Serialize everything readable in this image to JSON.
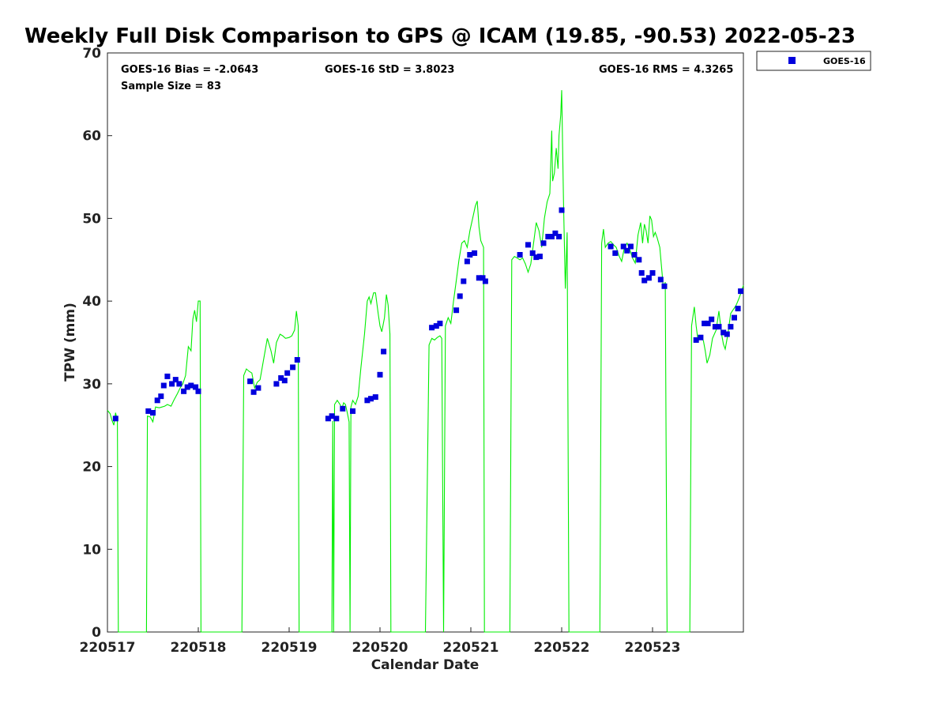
{
  "chart_data": {
    "type": "scatter",
    "title": "Weekly Full Disk Comparison to GPS @ ICAM (19.85, -90.53) 2022-05-23",
    "xlabel": "Calendar Date",
    "ylabel": "TPW (mm)",
    "xlim": [
      220517,
      220524
    ],
    "ylim": [
      0,
      70
    ],
    "x_ticks": [
      220517,
      220518,
      220519,
      220520,
      220521,
      220522,
      220523
    ],
    "x_tick_labels": [
      "220517",
      "220518",
      "220519",
      "220520",
      "220521",
      "220522",
      "220523"
    ],
    "y_ticks": [
      0,
      10,
      20,
      30,
      40,
      50,
      60,
      70
    ],
    "y_tick_labels": [
      "0",
      "10",
      "20",
      "30",
      "40",
      "50",
      "60",
      "70"
    ],
    "grid": false,
    "legend_position": "top-right",
    "stats": {
      "bias": "GOES-16 Bias = -2.0643",
      "std": "GOES-16 StD = 3.8023",
      "rms": "GOES-16 RMS = 4.3265",
      "sample_size": "Sample Size = 83"
    },
    "series": [
      {
        "name": "GOES-16",
        "kind": "markers",
        "color": "#0000dd",
        "marker": "square",
        "points": [
          [
            220517.09,
            25.8
          ],
          [
            220517.45,
            26.7
          ],
          [
            220517.5,
            26.5
          ],
          [
            220517.55,
            28.0
          ],
          [
            220517.59,
            28.5
          ],
          [
            220517.62,
            29.8
          ],
          [
            220517.66,
            30.9
          ],
          [
            220517.71,
            30.0
          ],
          [
            220517.75,
            30.5
          ],
          [
            220517.79,
            30.0
          ],
          [
            220517.84,
            29.1
          ],
          [
            220517.88,
            29.6
          ],
          [
            220517.92,
            29.8
          ],
          [
            220517.97,
            29.6
          ],
          [
            220518.0,
            29.1
          ],
          [
            220518.57,
            30.3
          ],
          [
            220518.61,
            29.0
          ],
          [
            220518.66,
            29.5
          ],
          [
            220518.86,
            30.0
          ],
          [
            220518.91,
            30.7
          ],
          [
            220518.95,
            30.4
          ],
          [
            220518.98,
            31.3
          ],
          [
            220519.04,
            32.0
          ],
          [
            220519.09,
            32.9
          ],
          [
            220519.43,
            25.8
          ],
          [
            220519.47,
            26.1
          ],
          [
            220519.52,
            25.8
          ],
          [
            220519.59,
            27.0
          ],
          [
            220519.7,
            26.7
          ],
          [
            220519.86,
            28.0
          ],
          [
            220519.9,
            28.2
          ],
          [
            220519.95,
            28.4
          ],
          [
            220520.0,
            31.1
          ],
          [
            220520.04,
            33.9
          ],
          [
            220520.57,
            36.8
          ],
          [
            220520.62,
            37.0
          ],
          [
            220520.66,
            37.3
          ],
          [
            220520.84,
            38.9
          ],
          [
            220520.88,
            40.6
          ],
          [
            220520.92,
            42.4
          ],
          [
            220520.96,
            44.8
          ],
          [
            220520.99,
            45.6
          ],
          [
            220521.04,
            45.8
          ],
          [
            220521.09,
            42.8
          ],
          [
            220521.13,
            42.8
          ],
          [
            220521.16,
            42.4
          ],
          [
            220521.54,
            45.6
          ],
          [
            220521.63,
            46.8
          ],
          [
            220521.68,
            45.8
          ],
          [
            220521.72,
            45.3
          ],
          [
            220521.76,
            45.4
          ],
          [
            220521.8,
            47.0
          ],
          [
            220521.85,
            47.8
          ],
          [
            220521.89,
            47.8
          ],
          [
            220521.93,
            48.2
          ],
          [
            220521.97,
            47.8
          ],
          [
            220522.0,
            51.0
          ],
          [
            220522.54,
            46.6
          ],
          [
            220522.59,
            45.8
          ],
          [
            220522.68,
            46.6
          ],
          [
            220522.72,
            46.1
          ],
          [
            220522.76,
            46.6
          ],
          [
            220522.8,
            45.6
          ],
          [
            220522.85,
            45.0
          ],
          [
            220522.88,
            43.4
          ],
          [
            220522.91,
            42.5
          ],
          [
            220522.96,
            42.8
          ],
          [
            220523.0,
            43.4
          ],
          [
            220523.09,
            42.6
          ],
          [
            220523.13,
            41.8
          ],
          [
            220523.48,
            35.3
          ],
          [
            220523.53,
            35.6
          ],
          [
            220523.57,
            37.3
          ],
          [
            220523.61,
            37.3
          ],
          [
            220523.65,
            37.8
          ],
          [
            220523.69,
            36.9
          ],
          [
            220523.73,
            36.9
          ],
          [
            220523.78,
            36.2
          ],
          [
            220523.82,
            36.0
          ],
          [
            220523.86,
            36.9
          ],
          [
            220523.9,
            38.0
          ],
          [
            220523.94,
            39.1
          ],
          [
            220523.97,
            41.2
          ]
        ]
      },
      {
        "name": "",
        "kind": "line",
        "color": "#00ee00",
        "points": [
          [
            220517.0,
            26.8
          ],
          [
            220517.03,
            26.4
          ],
          [
            220517.05,
            25.6
          ],
          [
            220517.07,
            25.0
          ],
          [
            220517.09,
            26.5
          ],
          [
            220517.11,
            25.5
          ],
          [
            220517.12,
            0
          ],
          [
            220517.43,
            0
          ],
          [
            220517.44,
            26.1
          ],
          [
            220517.47,
            26.0
          ],
          [
            220517.5,
            25.4
          ],
          [
            220517.53,
            27.2
          ],
          [
            220517.57,
            27.1
          ],
          [
            220517.6,
            27.2
          ],
          [
            220517.63,
            27.3
          ],
          [
            220517.66,
            27.5
          ],
          [
            220517.7,
            27.3
          ],
          [
            220517.73,
            28.0
          ],
          [
            220517.77,
            28.8
          ],
          [
            220517.8,
            29.5
          ],
          [
            220517.83,
            30.0
          ],
          [
            220517.86,
            31.0
          ],
          [
            220517.89,
            34.5
          ],
          [
            220517.92,
            34.0
          ],
          [
            220517.94,
            37.8
          ],
          [
            220517.96,
            38.9
          ],
          [
            220517.98,
            37.5
          ],
          [
            220518.0,
            40.0
          ],
          [
            220518.02,
            40.0
          ],
          [
            220518.03,
            0
          ],
          [
            220518.48,
            0
          ],
          [
            220518.5,
            31.0
          ],
          [
            220518.53,
            31.8
          ],
          [
            220518.56,
            31.5
          ],
          [
            220518.59,
            31.3
          ],
          [
            220518.62,
            29.5
          ],
          [
            220518.65,
            30.2
          ],
          [
            220518.68,
            30.5
          ],
          [
            220518.72,
            33.0
          ],
          [
            220518.76,
            35.5
          ],
          [
            220518.8,
            34.0
          ],
          [
            220518.83,
            32.5
          ],
          [
            220518.86,
            35.0
          ],
          [
            220518.9,
            36.0
          ],
          [
            220518.93,
            35.8
          ],
          [
            220518.96,
            35.5
          ],
          [
            220519.0,
            35.6
          ],
          [
            220519.03,
            35.8
          ],
          [
            220519.06,
            36.5
          ],
          [
            220519.08,
            38.8
          ],
          [
            220519.1,
            37.0
          ],
          [
            220519.11,
            0
          ],
          [
            220519.47,
            0
          ],
          [
            220519.48,
            25.5
          ],
          [
            220519.49,
            0
          ],
          [
            220519.5,
            27.5
          ],
          [
            220519.53,
            28.0
          ],
          [
            220519.56,
            27.5
          ],
          [
            220519.58,
            27.0
          ],
          [
            220519.6,
            27.7
          ],
          [
            220519.62,
            27.5
          ],
          [
            220519.64,
            26.5
          ],
          [
            220519.66,
            25.4
          ],
          [
            220519.67,
            0
          ],
          [
            220519.68,
            27.2
          ],
          [
            220519.7,
            28.0
          ],
          [
            220519.73,
            27.5
          ],
          [
            220519.76,
            28.5
          ],
          [
            220519.79,
            32.0
          ],
          [
            220519.83,
            36.0
          ],
          [
            220519.86,
            40.0
          ],
          [
            220519.88,
            40.5
          ],
          [
            220519.9,
            39.7
          ],
          [
            220519.93,
            41.0
          ],
          [
            220519.95,
            41.0
          ],
          [
            220519.98,
            38.5
          ],
          [
            220520.0,
            37.0
          ],
          [
            220520.02,
            36.3
          ],
          [
            220520.05,
            38.0
          ],
          [
            220520.07,
            40.8
          ],
          [
            220520.09,
            39.5
          ],
          [
            220520.11,
            36.0
          ],
          [
            220520.12,
            0
          ],
          [
            220520.5,
            0
          ],
          [
            220520.54,
            34.7
          ],
          [
            220520.57,
            35.5
          ],
          [
            220520.6,
            35.3
          ],
          [
            220520.63,
            35.6
          ],
          [
            220520.66,
            35.8
          ],
          [
            220520.68,
            35.5
          ],
          [
            220520.7,
            0
          ],
          [
            220520.72,
            37.0
          ],
          [
            220520.75,
            38.0
          ],
          [
            220520.78,
            37.3
          ],
          [
            220520.81,
            40.0
          ],
          [
            220520.84,
            42.5
          ],
          [
            220520.87,
            45.0
          ],
          [
            220520.9,
            47.0
          ],
          [
            220520.93,
            47.3
          ],
          [
            220520.96,
            46.5
          ],
          [
            220520.99,
            48.5
          ],
          [
            220521.02,
            50.0
          ],
          [
            220521.05,
            51.5
          ],
          [
            220521.07,
            52.1
          ],
          [
            220521.09,
            49.0
          ],
          [
            220521.11,
            47.3
          ],
          [
            220521.14,
            46.5
          ],
          [
            220521.15,
            0
          ],
          [
            220521.43,
            0
          ],
          [
            220521.45,
            45.0
          ],
          [
            220521.48,
            45.4
          ],
          [
            220521.51,
            45.2
          ],
          [
            220521.54,
            45.0
          ],
          [
            220521.57,
            45.2
          ],
          [
            220521.6,
            44.5
          ],
          [
            220521.63,
            43.5
          ],
          [
            220521.66,
            44.5
          ],
          [
            220521.69,
            47.0
          ],
          [
            220521.72,
            49.5
          ],
          [
            220521.75,
            48.5
          ],
          [
            220521.78,
            46.5
          ],
          [
            220521.81,
            50.0
          ],
          [
            220521.84,
            52.0
          ],
          [
            220521.87,
            53.0
          ],
          [
            220521.89,
            60.6
          ],
          [
            220521.9,
            54.5
          ],
          [
            220521.92,
            55.5
          ],
          [
            220521.94,
            58.5
          ],
          [
            220521.96,
            56.0
          ],
          [
            220521.97,
            60.0
          ],
          [
            220521.99,
            62.5
          ],
          [
            220522.0,
            65.5
          ],
          [
            220522.02,
            52.0
          ],
          [
            220522.04,
            41.5
          ],
          [
            220522.06,
            48.3
          ],
          [
            220522.08,
            0
          ],
          [
            220522.42,
            0
          ],
          [
            220522.44,
            47.0
          ],
          [
            220522.46,
            48.7
          ],
          [
            220522.48,
            46.5
          ],
          [
            220522.51,
            47.0
          ],
          [
            220522.54,
            47.2
          ],
          [
            220522.57,
            46.8
          ],
          [
            220522.6,
            46.5
          ],
          [
            220522.63,
            45.5
          ],
          [
            220522.66,
            44.8
          ],
          [
            220522.69,
            46.5
          ],
          [
            220522.72,
            47.0
          ],
          [
            220522.75,
            46.2
          ],
          [
            220522.78,
            45.2
          ],
          [
            220522.81,
            44.6
          ],
          [
            220522.84,
            48.0
          ],
          [
            220522.87,
            49.5
          ],
          [
            220522.89,
            47.0
          ],
          [
            220522.91,
            49.3
          ],
          [
            220522.93,
            48.5
          ],
          [
            220522.95,
            47.0
          ],
          [
            220522.97,
            50.3
          ],
          [
            220522.99,
            49.8
          ],
          [
            220523.01,
            47.8
          ],
          [
            220523.03,
            48.3
          ],
          [
            220523.05,
            47.7
          ],
          [
            220523.08,
            46.5
          ],
          [
            220523.1,
            44.0
          ],
          [
            220523.12,
            41.5
          ],
          [
            220523.14,
            42.3
          ],
          [
            220523.16,
            0
          ],
          [
            220523.41,
            0
          ],
          [
            220523.43,
            37.0
          ],
          [
            220523.46,
            39.3
          ],
          [
            220523.48,
            37.0
          ],
          [
            220523.5,
            35.3
          ],
          [
            220523.53,
            35.8
          ],
          [
            220523.56,
            35.2
          ],
          [
            220523.58,
            34.0
          ],
          [
            220523.6,
            32.5
          ],
          [
            220523.63,
            33.5
          ],
          [
            220523.66,
            35.5
          ],
          [
            220523.7,
            36.5
          ],
          [
            220523.73,
            38.8
          ],
          [
            220523.76,
            36.0
          ],
          [
            220523.78,
            34.8
          ],
          [
            220523.8,
            34.2
          ],
          [
            220523.83,
            36.0
          ],
          [
            220523.86,
            38.5
          ],
          [
            220523.89,
            39.0
          ],
          [
            220523.92,
            39.5
          ],
          [
            220523.95,
            40.3
          ],
          [
            220523.98,
            41.2
          ],
          [
            220524.0,
            41.9
          ]
        ]
      }
    ]
  }
}
